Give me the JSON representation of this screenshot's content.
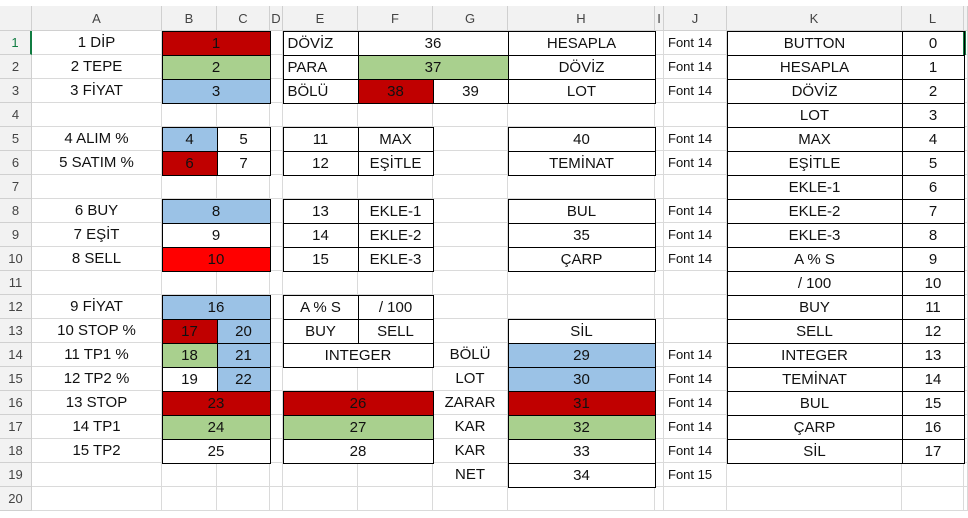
{
  "columns": [
    "A",
    "B",
    "C",
    "D",
    "E",
    "F",
    "G",
    "H",
    "I",
    "J",
    "K",
    "L"
  ],
  "rows": [
    {
      "number": 1,
      "cells": [
        "1 DİP",
        1,
        null,
        null,
        "DÖVİZ",
        36,
        null,
        "HESAPLA",
        null,
        "Font 14",
        "BUTTON",
        0
      ]
    },
    {
      "number": 2,
      "cells": [
        "2 TEPE",
        2,
        null,
        null,
        "PARA",
        37,
        null,
        "DÖVİZ",
        null,
        "Font 14",
        "HESAPLA",
        1
      ]
    },
    {
      "number": 3,
      "cells": [
        "3 FİYAT",
        3,
        null,
        null,
        "BÖLÜ",
        38,
        39,
        "LOT",
        null,
        "Font 14",
        "DÖVİZ",
        2
      ]
    },
    {
      "number": 4,
      "cells": [
        null,
        null,
        null,
        null,
        null,
        null,
        null,
        null,
        null,
        null,
        "LOT",
        3
      ]
    },
    {
      "number": 5,
      "cells": [
        "4 ALIM %",
        4,
        5,
        null,
        11,
        "MAX",
        null,
        40,
        null,
        "Font 14",
        "MAX",
        4
      ]
    },
    {
      "number": 6,
      "cells": [
        "5 SATIM %",
        6,
        7,
        null,
        12,
        "EŞİTLE",
        null,
        "TEMİNAT",
        null,
        "Font 14",
        "EŞİTLE",
        5
      ]
    },
    {
      "number": 7,
      "cells": [
        null,
        null,
        null,
        null,
        null,
        null,
        null,
        null,
        null,
        null,
        "EKLE-1",
        6
      ]
    },
    {
      "number": 8,
      "cells": [
        "6 BUY",
        8,
        null,
        null,
        13,
        "EKLE-1",
        null,
        "BUL",
        null,
        "Font 14",
        "EKLE-2",
        7
      ]
    },
    {
      "number": 9,
      "cells": [
        "7 EŞİT",
        9,
        null,
        null,
        14,
        "EKLE-2",
        null,
        35,
        null,
        "Font 14",
        "EKLE-3",
        8
      ]
    },
    {
      "number": 10,
      "cells": [
        "8 SELL",
        10,
        null,
        null,
        15,
        "EKLE-3",
        null,
        "ÇARP",
        null,
        "Font 14",
        "A % S",
        9
      ]
    },
    {
      "number": 11,
      "cells": [
        null,
        null,
        null,
        null,
        null,
        null,
        null,
        null,
        null,
        null,
        "/ 100",
        10
      ]
    },
    {
      "number": 12,
      "cells": [
        "9 FİYAT",
        16,
        null,
        null,
        "A % S",
        "/ 100",
        null,
        null,
        null,
        null,
        "BUY",
        11
      ]
    },
    {
      "number": 13,
      "cells": [
        "10 STOP %",
        17,
        20,
        null,
        "BUY",
        "SELL",
        null,
        "SİL",
        null,
        null,
        "SELL",
        12
      ]
    },
    {
      "number": 14,
      "cells": [
        "11 TP1 %",
        18,
        21,
        null,
        "INTEGER",
        null,
        "BÖLÜ",
        29,
        null,
        "Font 14",
        "INTEGER",
        13
      ]
    },
    {
      "number": 15,
      "cells": [
        "12 TP2 %",
        19,
        22,
        null,
        null,
        null,
        "LOT",
        30,
        null,
        "Font 14",
        "TEMİNAT",
        14
      ]
    },
    {
      "number": 16,
      "cells": [
        "13 STOP",
        23,
        null,
        null,
        26,
        null,
        "ZARAR",
        31,
        null,
        "Font 14",
        "BUL",
        15
      ]
    },
    {
      "number": 17,
      "cells": [
        "14 TP1",
        24,
        null,
        null,
        27,
        null,
        "KAR",
        32,
        null,
        "Font 14",
        "ÇARP",
        16
      ]
    },
    {
      "number": 18,
      "cells": [
        "15 TP2",
        25,
        null,
        null,
        28,
        null,
        "KAR",
        33,
        null,
        "Font 14",
        "SİL",
        17
      ]
    },
    {
      "number": 19,
      "cells": [
        null,
        null,
        null,
        null,
        null,
        null,
        "NET",
        34,
        null,
        "Font 15",
        null,
        null
      ]
    },
    {
      "number": 20,
      "cells": [
        null,
        null,
        null,
        null,
        null,
        null,
        null,
        null,
        null,
        null,
        null,
        null
      ]
    }
  ]
}
